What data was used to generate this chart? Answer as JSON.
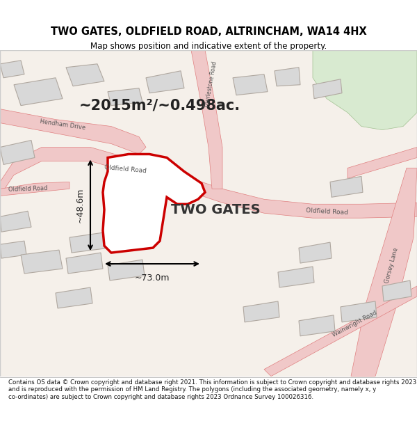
{
  "title_line1": "TWO GATES, OLDFIELD ROAD, ALTRINCHAM, WA14 4HX",
  "title_line2": "Map shows position and indicative extent of the property.",
  "area_text": "~2015m²/~0.498ac.",
  "property_name": "TWO GATES",
  "dim_width": "~73.0m",
  "dim_height": "~48.6m",
  "footer_text": "Contains OS data © Crown copyright and database right 2021. This information is subject to Crown copyright and database rights 2023 and is reproduced with the permission of HM Land Registry. The polygons (including the associated geometry, namely x, y co-ordinates) are subject to Crown copyright and database rights 2023 Ordnance Survey 100026316.",
  "bg_color": "#f5f0eb",
  "map_bg": "#f5f0ea",
  "road_color": "#f0c8c8",
  "road_stroke": "#e08080",
  "property_fill": "#ffffff",
  "property_stroke": "#cc0000",
  "building_fill": "#e0e0e0",
  "building_stroke": "#c0b0b0",
  "green_fill": "#d8ead0",
  "footer_bg": "#ffffff",
  "title_bg": "#ffffff",
  "map_border": "#cccccc"
}
